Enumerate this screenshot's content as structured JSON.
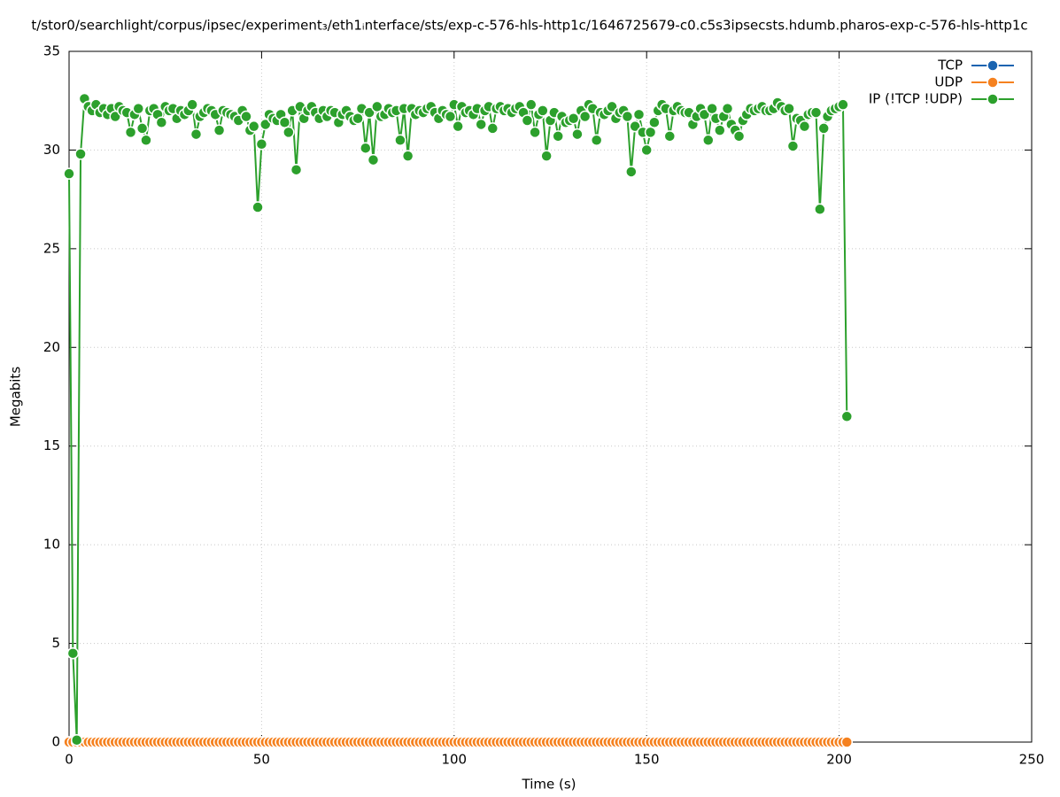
{
  "chart_data": {
    "type": "line",
    "title": "t/stor0/searchlight/corpus/ipsec/experiment₃/eth1ᵢnterface/sts/exp-c-576-hls-http1c/1646725679-c0.c5s3ipsecsts.hdumb.pharos-exp-c-576-hls-http1c",
    "xlabel": "Time (s)",
    "ylabel": "Megabits",
    "xlim": [
      0,
      250
    ],
    "xticks": [
      0,
      50,
      100,
      150,
      200,
      250
    ],
    "ylim": [
      0,
      35
    ],
    "yticks": [
      0,
      5,
      10,
      15,
      20,
      25,
      30,
      35
    ],
    "grid": true,
    "legend": "upper right",
    "x": [
      0,
      1,
      2,
      3,
      4,
      5,
      6,
      7,
      8,
      9,
      10,
      11,
      12,
      13,
      14,
      15,
      16,
      17,
      18,
      19,
      20,
      21,
      22,
      23,
      24,
      25,
      26,
      27,
      28,
      29,
      30,
      31,
      32,
      33,
      34,
      35,
      36,
      37,
      38,
      39,
      40,
      41,
      42,
      43,
      44,
      45,
      46,
      47,
      48,
      49,
      50,
      51,
      52,
      53,
      54,
      55,
      56,
      57,
      58,
      59,
      60,
      61,
      62,
      63,
      64,
      65,
      66,
      67,
      68,
      69,
      70,
      71,
      72,
      73,
      74,
      75,
      76,
      77,
      78,
      79,
      80,
      81,
      82,
      83,
      84,
      85,
      86,
      87,
      88,
      89,
      90,
      91,
      92,
      93,
      94,
      95,
      96,
      97,
      98,
      99,
      100,
      101,
      102,
      103,
      104,
      105,
      106,
      107,
      108,
      109,
      110,
      111,
      112,
      113,
      114,
      115,
      116,
      117,
      118,
      119,
      120,
      121,
      122,
      123,
      124,
      125,
      126,
      127,
      128,
      129,
      130,
      131,
      132,
      133,
      134,
      135,
      136,
      137,
      138,
      139,
      140,
      141,
      142,
      143,
      144,
      145,
      146,
      147,
      148,
      149,
      150,
      151,
      152,
      153,
      154,
      155,
      156,
      157,
      158,
      159,
      160,
      161,
      162,
      163,
      164,
      165,
      166,
      167,
      168,
      169,
      170,
      171,
      172,
      173,
      174,
      175,
      176,
      177,
      178,
      179,
      180,
      181,
      182,
      183,
      184,
      185,
      186,
      187,
      188,
      189,
      190,
      191,
      192,
      193,
      194,
      195,
      196,
      197,
      198,
      199,
      200,
      201,
      202
    ],
    "series": [
      {
        "name": "TCP",
        "color": "#1a63b0",
        "values": [
          0,
          0,
          0,
          0,
          0,
          0,
          0,
          0,
          0,
          0,
          0,
          0,
          0,
          0,
          0,
          0,
          0,
          0,
          0,
          0,
          0,
          0,
          0,
          0,
          0,
          0,
          0,
          0,
          0,
          0,
          0,
          0,
          0,
          0,
          0,
          0,
          0,
          0,
          0,
          0,
          0,
          0,
          0,
          0,
          0,
          0,
          0,
          0,
          0,
          0,
          0,
          0,
          0,
          0,
          0,
          0,
          0,
          0,
          0,
          0,
          0,
          0,
          0,
          0,
          0,
          0,
          0,
          0,
          0,
          0,
          0,
          0,
          0,
          0,
          0,
          0,
          0,
          0,
          0,
          0,
          0,
          0,
          0,
          0,
          0,
          0,
          0,
          0,
          0,
          0,
          0,
          0,
          0,
          0,
          0,
          0,
          0,
          0,
          0,
          0,
          0,
          0,
          0,
          0,
          0,
          0,
          0,
          0,
          0,
          0,
          0,
          0,
          0,
          0,
          0,
          0,
          0,
          0,
          0,
          0,
          0,
          0,
          0,
          0,
          0,
          0,
          0,
          0,
          0,
          0,
          0,
          0,
          0,
          0,
          0,
          0,
          0,
          0,
          0,
          0,
          0,
          0,
          0,
          0,
          0,
          0,
          0,
          0,
          0,
          0,
          0,
          0,
          0,
          0,
          0,
          0,
          0,
          0,
          0,
          0,
          0,
          0,
          0,
          0,
          0,
          0,
          0,
          0,
          0,
          0,
          0,
          0,
          0,
          0,
          0,
          0,
          0,
          0,
          0,
          0,
          0,
          0,
          0,
          0,
          0,
          0,
          0,
          0,
          0,
          0,
          0,
          0,
          0,
          0,
          0,
          0,
          0,
          0,
          0,
          0,
          0,
          0,
          0
        ]
      },
      {
        "name": "UDP",
        "color": "#f5811f",
        "values": [
          0,
          0,
          0,
          0,
          0,
          0,
          0,
          0,
          0,
          0,
          0,
          0,
          0,
          0,
          0,
          0,
          0,
          0,
          0,
          0,
          0,
          0,
          0,
          0,
          0,
          0,
          0,
          0,
          0,
          0,
          0,
          0,
          0,
          0,
          0,
          0,
          0,
          0,
          0,
          0,
          0,
          0,
          0,
          0,
          0,
          0,
          0,
          0,
          0,
          0,
          0,
          0,
          0,
          0,
          0,
          0,
          0,
          0,
          0,
          0,
          0,
          0,
          0,
          0,
          0,
          0,
          0,
          0,
          0,
          0,
          0,
          0,
          0,
          0,
          0,
          0,
          0,
          0,
          0,
          0,
          0,
          0,
          0,
          0,
          0,
          0,
          0,
          0,
          0,
          0,
          0,
          0,
          0,
          0,
          0,
          0,
          0,
          0,
          0,
          0,
          0,
          0,
          0,
          0,
          0,
          0,
          0,
          0,
          0,
          0,
          0,
          0,
          0,
          0,
          0,
          0,
          0,
          0,
          0,
          0,
          0,
          0,
          0,
          0,
          0,
          0,
          0,
          0,
          0,
          0,
          0,
          0,
          0,
          0,
          0,
          0,
          0,
          0,
          0,
          0,
          0,
          0,
          0,
          0,
          0,
          0,
          0,
          0,
          0,
          0,
          0,
          0,
          0,
          0,
          0,
          0,
          0,
          0,
          0,
          0,
          0,
          0,
          0,
          0,
          0,
          0,
          0,
          0,
          0,
          0,
          0,
          0,
          0,
          0,
          0,
          0,
          0,
          0,
          0,
          0,
          0,
          0,
          0,
          0,
          0,
          0,
          0,
          0,
          0,
          0,
          0,
          0,
          0,
          0,
          0,
          0,
          0,
          0,
          0,
          0,
          0,
          0,
          0
        ]
      },
      {
        "name": "IP (!TCP  !UDP)",
        "color": "#2ca02c",
        "values": [
          28.8,
          4.5,
          0.1,
          29.8,
          32.6,
          32.2,
          32.0,
          32.3,
          31.9,
          32.1,
          31.8,
          32.1,
          31.7,
          32.2,
          32.0,
          31.9,
          30.9,
          31.8,
          32.1,
          31.1,
          30.5,
          32.0,
          32.1,
          31.8,
          31.4,
          32.2,
          32.0,
          32.1,
          31.6,
          32.0,
          31.8,
          32.0,
          32.3,
          30.8,
          31.7,
          31.9,
          32.1,
          32.0,
          31.8,
          31.0,
          32.0,
          31.9,
          31.8,
          31.7,
          31.5,
          32.0,
          31.7,
          31.0,
          31.2,
          27.1,
          30.3,
          31.3,
          31.8,
          31.6,
          31.5,
          31.8,
          31.4,
          30.9,
          32.0,
          29.0,
          32.2,
          31.6,
          32.0,
          32.2,
          31.9,
          31.6,
          32.0,
          31.7,
          32.0,
          31.9,
          31.4,
          31.8,
          32.0,
          31.7,
          31.5,
          31.6,
          32.1,
          30.1,
          31.9,
          29.5,
          32.2,
          31.7,
          31.8,
          32.1,
          31.9,
          32.0,
          30.5,
          32.1,
          29.7,
          32.1,
          31.8,
          32.0,
          31.9,
          32.1,
          32.2,
          31.9,
          31.6,
          32.0,
          31.8,
          31.7,
          32.3,
          31.2,
          32.2,
          31.9,
          32.0,
          31.8,
          32.1,
          31.3,
          32.0,
          32.2,
          31.1,
          32.1,
          32.2,
          32.0,
          32.1,
          31.9,
          32.1,
          32.2,
          31.9,
          31.5,
          32.3,
          30.9,
          31.8,
          32.0,
          29.7,
          31.5,
          31.9,
          30.7,
          31.7,
          31.4,
          31.5,
          31.6,
          30.8,
          32.0,
          31.7,
          32.3,
          32.1,
          30.5,
          31.9,
          31.8,
          32.0,
          32.2,
          31.6,
          31.9,
          32.0,
          31.7,
          28.9,
          31.2,
          31.8,
          30.9,
          30.0,
          30.9,
          31.4,
          32.0,
          32.3,
          32.1,
          30.7,
          32.0,
          32.2,
          32.0,
          31.9,
          31.9,
          31.3,
          31.7,
          32.1,
          31.8,
          30.5,
          32.1,
          31.6,
          31.0,
          31.7,
          32.1,
          31.3,
          31.0,
          30.7,
          31.5,
          31.8,
          32.1,
          32.0,
          32.1,
          32.2,
          32.0,
          32.0,
          32.1,
          32.4,
          32.2,
          32.0,
          32.1,
          30.2,
          31.6,
          31.5,
          31.2,
          31.8,
          31.9,
          31.9,
          27.0,
          31.1,
          31.7,
          32.0,
          32.1,
          32.2,
          32.3,
          16.5
        ]
      }
    ]
  }
}
